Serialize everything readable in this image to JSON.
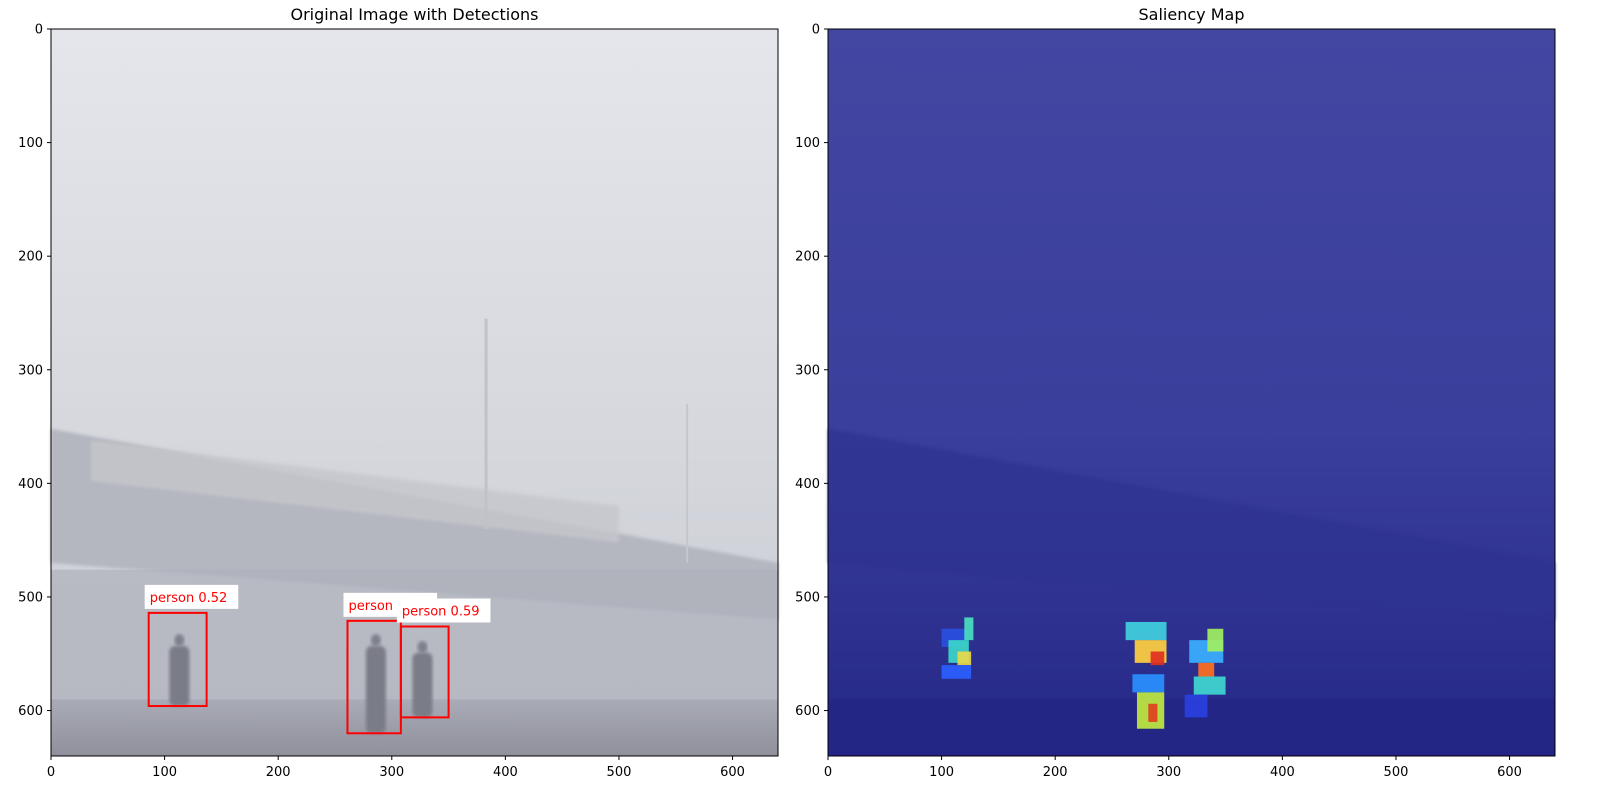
{
  "chart_data": [
    {
      "type": "heatmap",
      "title": "Original Image with Detections",
      "xlim": [
        0,
        640
      ],
      "ylim": [
        640,
        0
      ],
      "xticks": [
        0,
        100,
        200,
        300,
        400,
        500,
        600
      ],
      "yticks": [
        0,
        100,
        200,
        300,
        400,
        500,
        600
      ],
      "background": "foggy scene: pedestrians walking under an overpass bridge, street lamps",
      "detections": [
        {
          "label": "person 0.52",
          "x1": 86,
          "y1": 514,
          "x2": 137,
          "y2": 596
        },
        {
          "label": "person 0.59",
          "x1": 261,
          "y1": 521,
          "x2": 308,
          "y2": 620
        },
        {
          "label": "person 0.59",
          "x1": 308,
          "y1": 526,
          "x2": 350,
          "y2": 606
        }
      ],
      "box_color": "#ff0000"
    },
    {
      "type": "heatmap",
      "title": "Saliency Map",
      "xlim": [
        0,
        640
      ],
      "ylim": [
        640,
        0
      ],
      "xticks": [
        0,
        100,
        200,
        300,
        400,
        500,
        600
      ],
      "yticks": [
        0,
        100,
        200,
        300,
        400,
        500,
        600
      ],
      "colormap": "jet",
      "base_color": "#3b3fa0",
      "hotspots": [
        {
          "x": 100,
          "y": 528,
          "w": 22,
          "h": 16,
          "color": "#2a50e0"
        },
        {
          "x": 106,
          "y": 538,
          "w": 18,
          "h": 20,
          "color": "#3bd6c8"
        },
        {
          "x": 114,
          "y": 548,
          "w": 12,
          "h": 12,
          "color": "#e8d84a"
        },
        {
          "x": 120,
          "y": 518,
          "w": 8,
          "h": 20,
          "color": "#4ae0c0"
        },
        {
          "x": 100,
          "y": 560,
          "w": 26,
          "h": 12,
          "color": "#2a60ff"
        },
        {
          "x": 262,
          "y": 522,
          "w": 36,
          "h": 16,
          "color": "#40d0e0"
        },
        {
          "x": 270,
          "y": 538,
          "w": 28,
          "h": 20,
          "color": "#ffd040"
        },
        {
          "x": 284,
          "y": 548,
          "w": 12,
          "h": 12,
          "color": "#e03020"
        },
        {
          "x": 268,
          "y": 568,
          "w": 28,
          "h": 16,
          "color": "#2a8fff"
        },
        {
          "x": 272,
          "y": 584,
          "w": 24,
          "h": 32,
          "color": "#c0e840"
        },
        {
          "x": 282,
          "y": 594,
          "w": 8,
          "h": 16,
          "color": "#e04020"
        },
        {
          "x": 318,
          "y": 538,
          "w": 30,
          "h": 20,
          "color": "#3ab0ff"
        },
        {
          "x": 334,
          "y": 528,
          "w": 14,
          "h": 20,
          "color": "#a0f060"
        },
        {
          "x": 326,
          "y": 558,
          "w": 14,
          "h": 12,
          "color": "#ff7020"
        },
        {
          "x": 322,
          "y": 570,
          "w": 28,
          "h": 16,
          "color": "#40d8d0"
        },
        {
          "x": 314,
          "y": 586,
          "w": 20,
          "h": 20,
          "color": "#2a40e0"
        }
      ]
    }
  ]
}
